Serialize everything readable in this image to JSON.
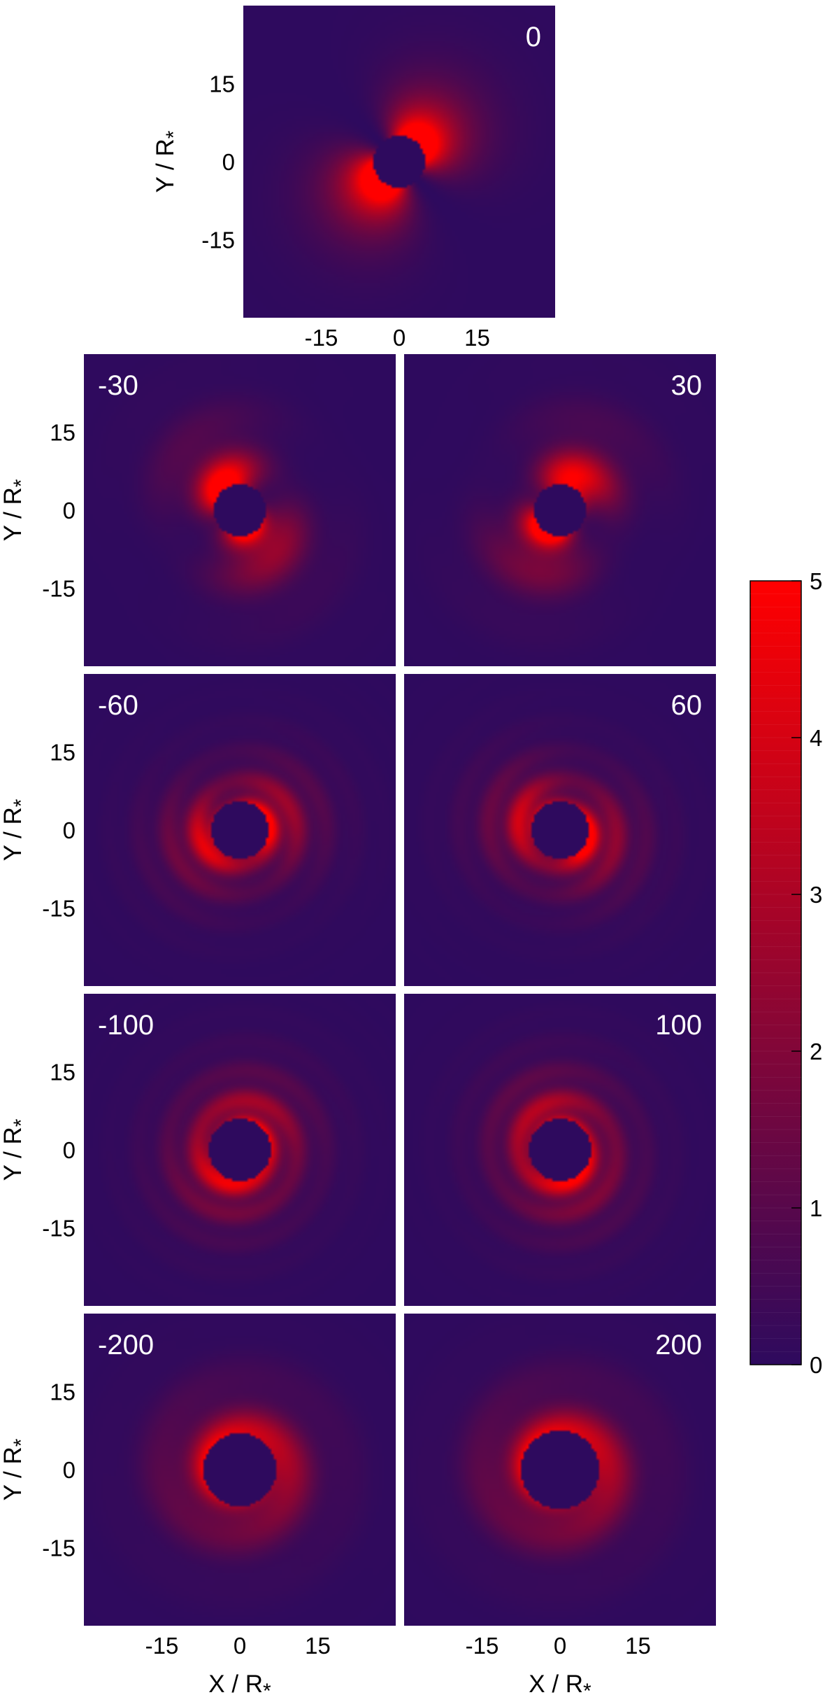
{
  "chart_data": {
    "type": "heatmap",
    "panels": [
      {
        "label": "0",
        "lobe": 1.0,
        "lobe_angle": 45,
        "rings": 0,
        "hole": 5.0
      },
      {
        "label": "-30",
        "lobe": 0.8,
        "lobe_angle": 120,
        "rings": 1,
        "hole": 5.0
      },
      {
        "label": "30",
        "lobe": 0.8,
        "lobe_angle": 240,
        "rings": 1,
        "hole": 5.0
      },
      {
        "label": "-60",
        "lobe": 0.4,
        "lobe_angle": 200,
        "rings": 2,
        "hole": 5.5
      },
      {
        "label": "60",
        "lobe": 0.4,
        "lobe_angle": 160,
        "rings": 2,
        "hole": 5.5
      },
      {
        "label": "-100",
        "lobe": 0.2,
        "lobe_angle": 60,
        "rings": 2,
        "hole": 6.0
      },
      {
        "label": "100",
        "lobe": 0.2,
        "lobe_angle": 110,
        "rings": 2,
        "hole": 6.0
      },
      {
        "label": "-200",
        "lobe": 0.05,
        "lobe_angle": 0,
        "rings": 1,
        "hole": 7.0
      },
      {
        "label": "200",
        "lobe": 0.05,
        "lobe_angle": 0,
        "rings": 1,
        "hole": 7.5
      }
    ],
    "x_ticks": [
      "-15",
      "0",
      "15"
    ],
    "y_ticks": [
      "15",
      "0",
      "-15"
    ],
    "x_tick_values": [
      -15,
      0,
      15
    ],
    "y_tick_values": [
      15,
      0,
      -15
    ],
    "xlim": [
      -30,
      30
    ],
    "ylim": [
      -30,
      30
    ],
    "xlabel_main": "X / R",
    "xlabel_sub": "*",
    "ylabel_main": "Y / R",
    "ylabel_sub": "*",
    "colorbar": {
      "min": 0,
      "max": 5,
      "ticks": [
        "5",
        "4",
        "3",
        "2",
        "1",
        "0"
      ],
      "tick_values": [
        5,
        4,
        3,
        2,
        1,
        0
      ],
      "colors": [
        "#2e0a5e",
        "#ff0000"
      ]
    },
    "grid": false
  }
}
